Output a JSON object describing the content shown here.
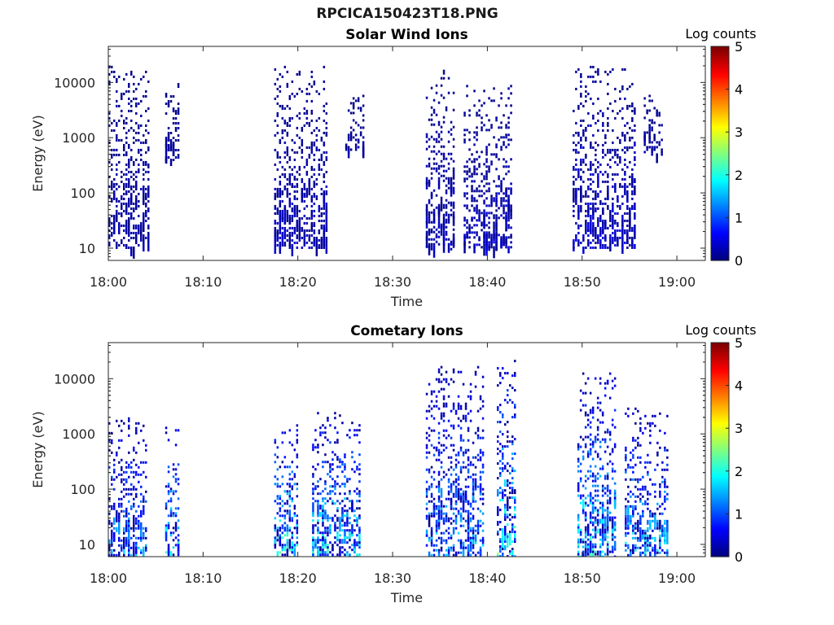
{
  "figure": {
    "title": "RPCICA150423T18.PNG"
  },
  "chart_data": [
    {
      "type": "heatmap",
      "title": "Solar Wind Ions",
      "xlabel": "Time",
      "ylabel": "Energy (eV)",
      "yscale": "log",
      "xlim_minutes": [
        0,
        63
      ],
      "ylim": [
        6,
        45000
      ],
      "xticks": [
        "18:00",
        "18:10",
        "18:20",
        "18:30",
        "18:40",
        "18:50",
        "19:00"
      ],
      "yticks": [
        10,
        100,
        1000,
        10000
      ],
      "ytick_labels": [
        "10",
        "100",
        "1000",
        "10000"
      ],
      "colorbar": {
        "label": "Log counts",
        "range": [
          0,
          5
        ],
        "ticks": [
          "0",
          "1",
          "2",
          "3",
          "4",
          "5"
        ],
        "colormap": "jet"
      },
      "bursts": [
        {
          "start_min": 0.0,
          "end_min": 4.3,
          "energy_range": [
            10,
            20000
          ],
          "intensity": 0.3
        },
        {
          "start_min": 6.0,
          "end_min": 7.5,
          "energy_range": [
            400,
            12000
          ],
          "intensity": 0.2
        },
        {
          "start_min": 17.5,
          "end_min": 23.0,
          "energy_range": [
            10,
            20000
          ],
          "intensity": 0.4
        },
        {
          "start_min": 25.0,
          "end_min": 27.0,
          "energy_range": [
            600,
            6000
          ],
          "intensity": 0.2
        },
        {
          "start_min": 33.5,
          "end_min": 36.5,
          "energy_range": [
            10,
            17000
          ],
          "intensity": 0.4
        },
        {
          "start_min": 37.5,
          "end_min": 42.5,
          "energy_range": [
            10,
            10000
          ],
          "intensity": 0.4
        },
        {
          "start_min": 49.0,
          "end_min": 55.5,
          "energy_range": [
            10,
            20000
          ],
          "intensity": 0.5
        },
        {
          "start_min": 56.5,
          "end_min": 58.5,
          "energy_range": [
            500,
            6000
          ],
          "intensity": 0.3
        }
      ]
    },
    {
      "type": "heatmap",
      "title": "Cometary Ions",
      "xlabel": "Time",
      "ylabel": "Energy (eV)",
      "yscale": "log",
      "xlim_minutes": [
        0,
        63
      ],
      "ylim": [
        6,
        45000
      ],
      "xticks": [
        "18:00",
        "18:10",
        "18:20",
        "18:30",
        "18:40",
        "18:50",
        "19:00"
      ],
      "yticks": [
        10,
        100,
        1000,
        10000
      ],
      "ytick_labels": [
        "10",
        "100",
        "1000",
        "10000"
      ],
      "colorbar": {
        "label": "Log counts",
        "range": [
          0,
          5
        ],
        "ticks": [
          "0",
          "1",
          "2",
          "3",
          "4",
          "5"
        ],
        "colormap": "jet"
      },
      "bursts": [
        {
          "start_min": 0.0,
          "end_min": 4.0,
          "energy_range": [
            6,
            2000
          ],
          "intensity": 1.5
        },
        {
          "start_min": 6.0,
          "end_min": 7.5,
          "energy_range": [
            6,
            1500
          ],
          "intensity": 2.0
        },
        {
          "start_min": 17.5,
          "end_min": 20.0,
          "energy_range": [
            6,
            1500
          ],
          "intensity": 2.2
        },
        {
          "start_min": 21.5,
          "end_min": 26.5,
          "energy_range": [
            6,
            2500
          ],
          "intensity": 2.0
        },
        {
          "start_min": 33.5,
          "end_min": 39.5,
          "energy_range": [
            6,
            17000
          ],
          "intensity": 1.6
        },
        {
          "start_min": 41.0,
          "end_min": 43.0,
          "energy_range": [
            6,
            22000
          ],
          "intensity": 2.2
        },
        {
          "start_min": 49.5,
          "end_min": 53.5,
          "energy_range": [
            6,
            13000
          ],
          "intensity": 2.0
        },
        {
          "start_min": 54.5,
          "end_min": 59.0,
          "energy_range": [
            6,
            3000
          ],
          "intensity": 1.8
        }
      ]
    }
  ]
}
